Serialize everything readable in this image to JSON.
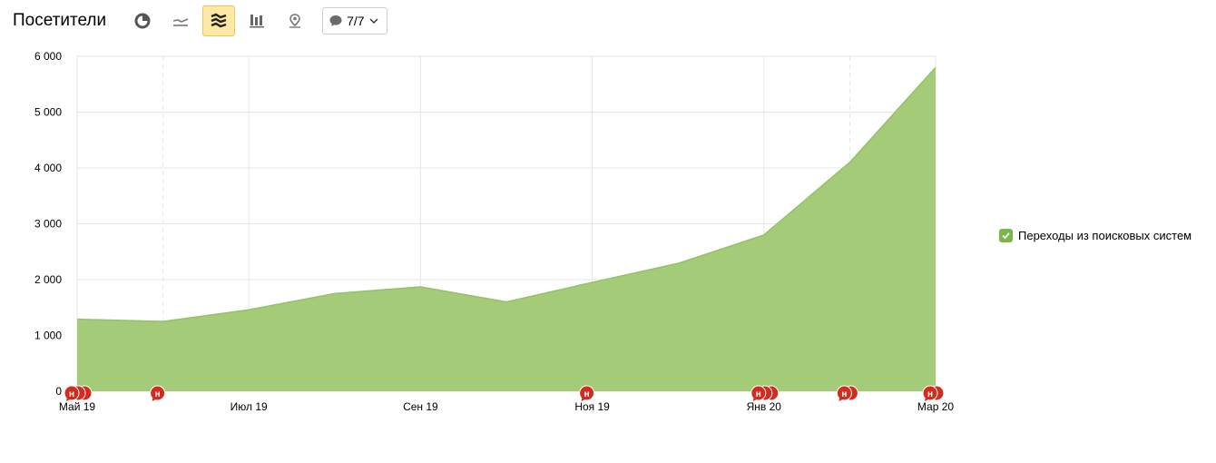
{
  "header": {
    "title": "Посетители",
    "notes_label": "7/7"
  },
  "view_buttons": [
    {
      "icon": "pie-chart-icon",
      "active": false
    },
    {
      "icon": "line-chart-icon",
      "active": false
    },
    {
      "icon": "area-chart-icon",
      "active": true
    },
    {
      "icon": "bar-chart-icon",
      "active": false
    },
    {
      "icon": "map-icon",
      "active": false
    }
  ],
  "colors": {
    "series": "#a4cb78",
    "marker": "#d12c1f",
    "active_button": "#fde9a4",
    "legend_check": "#7ab648"
  },
  "legend": {
    "label": "Переходы из поисковых систем"
  },
  "note_marker_letter": "н",
  "chart_data": {
    "type": "area",
    "title": "",
    "xlabel": "",
    "ylabel": "",
    "ylim": [
      0,
      6000
    ],
    "y_ticks": [
      0,
      1000,
      2000,
      3000,
      4000,
      5000,
      6000
    ],
    "y_tick_labels": [
      "0",
      "1 000",
      "2 000",
      "3 000",
      "4 000",
      "5 000",
      "6 000"
    ],
    "x": [
      "2019-05",
      "2019-06",
      "2019-07",
      "2019-08",
      "2019-09",
      "2019-10",
      "2019-11",
      "2019-12",
      "2020-01",
      "2020-02",
      "2020-03"
    ],
    "x_tick_labels": [
      "Май 19",
      "Июл 19",
      "Сен 19",
      "Ноя 19",
      "Янв 20",
      "Мар 20"
    ],
    "x_tick_positions": [
      "2019-05",
      "2019-07",
      "2019-09",
      "2019-11",
      "2020-01",
      "2020-03"
    ],
    "series": [
      {
        "name": "Переходы из поисковых систем",
        "values": [
          1290,
          1250,
          1460,
          1750,
          1870,
          1600,
          1950,
          2290,
          2800,
          4100,
          5800
        ]
      }
    ],
    "grid": true,
    "legend_position": "right",
    "note_markers": [
      {
        "x": "2019-05",
        "count": 3
      },
      {
        "x": "2019-06",
        "count": 1
      },
      {
        "x": "2019-11",
        "count": 1
      },
      {
        "x": "2020-01",
        "count": 3
      },
      {
        "x": "2020-02",
        "count": 2
      },
      {
        "x": "2020-03",
        "count": 2
      }
    ]
  }
}
